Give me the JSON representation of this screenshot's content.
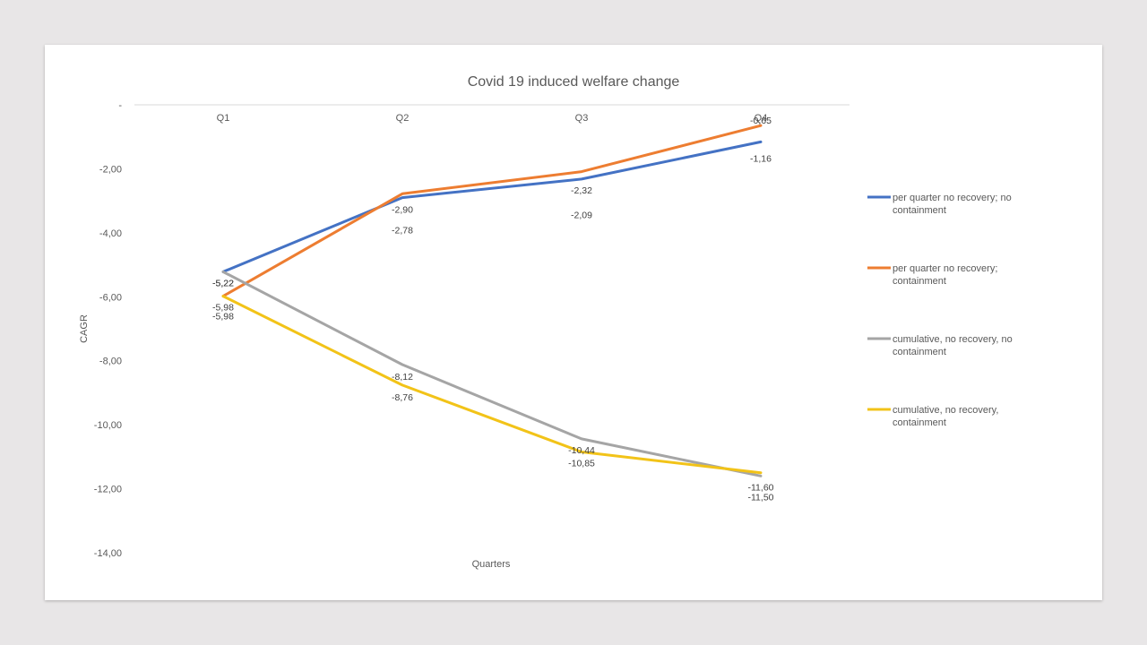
{
  "chart_data": {
    "type": "line",
    "title": "Covid 19 induced welfare change",
    "xlabel": "Quarters",
    "ylabel": "CAGR",
    "categories": [
      "Q1",
      "Q2",
      "Q3",
      "Q4"
    ],
    "y_ticks": [
      "-",
      "-2,00",
      "-4,00",
      "-6,00",
      "-8,00",
      "-10,00",
      "-12,00",
      "-14,00"
    ],
    "ylim": [
      -14,
      0
    ],
    "grid": false,
    "legend_position": "right",
    "series": [
      {
        "name": "per quarter no recovery; no containment",
        "values": [
          -5.22,
          -2.9,
          -2.32,
          -1.16
        ],
        "labels": [
          "-5,22",
          "-2,90",
          "-2,32",
          "-1,16"
        ],
        "color": "#4472c4"
      },
      {
        "name": "per quarter no recovery; containment",
        "values": [
          -5.98,
          -2.78,
          -2.09,
          -0.65
        ],
        "labels": [
          "-5,98",
          "-2,78",
          "-2,09",
          "-0,65"
        ],
        "color": "#ed7d31"
      },
      {
        "name": "cumulative, no recovery, no containment",
        "values": [
          -5.22,
          -8.12,
          -10.44,
          -11.6
        ],
        "labels": [
          "-5,22",
          "-8,12",
          "-10,44",
          "-11,60"
        ],
        "color": "#a5a5a5"
      },
      {
        "name": "cumulative, no recovery, containment",
        "values": [
          -5.98,
          -8.76,
          -10.85,
          -11.5
        ],
        "labels": [
          "-5,98",
          "-8,76",
          "-10,85",
          "-11,50"
        ],
        "color": "#f2c318"
      }
    ]
  }
}
